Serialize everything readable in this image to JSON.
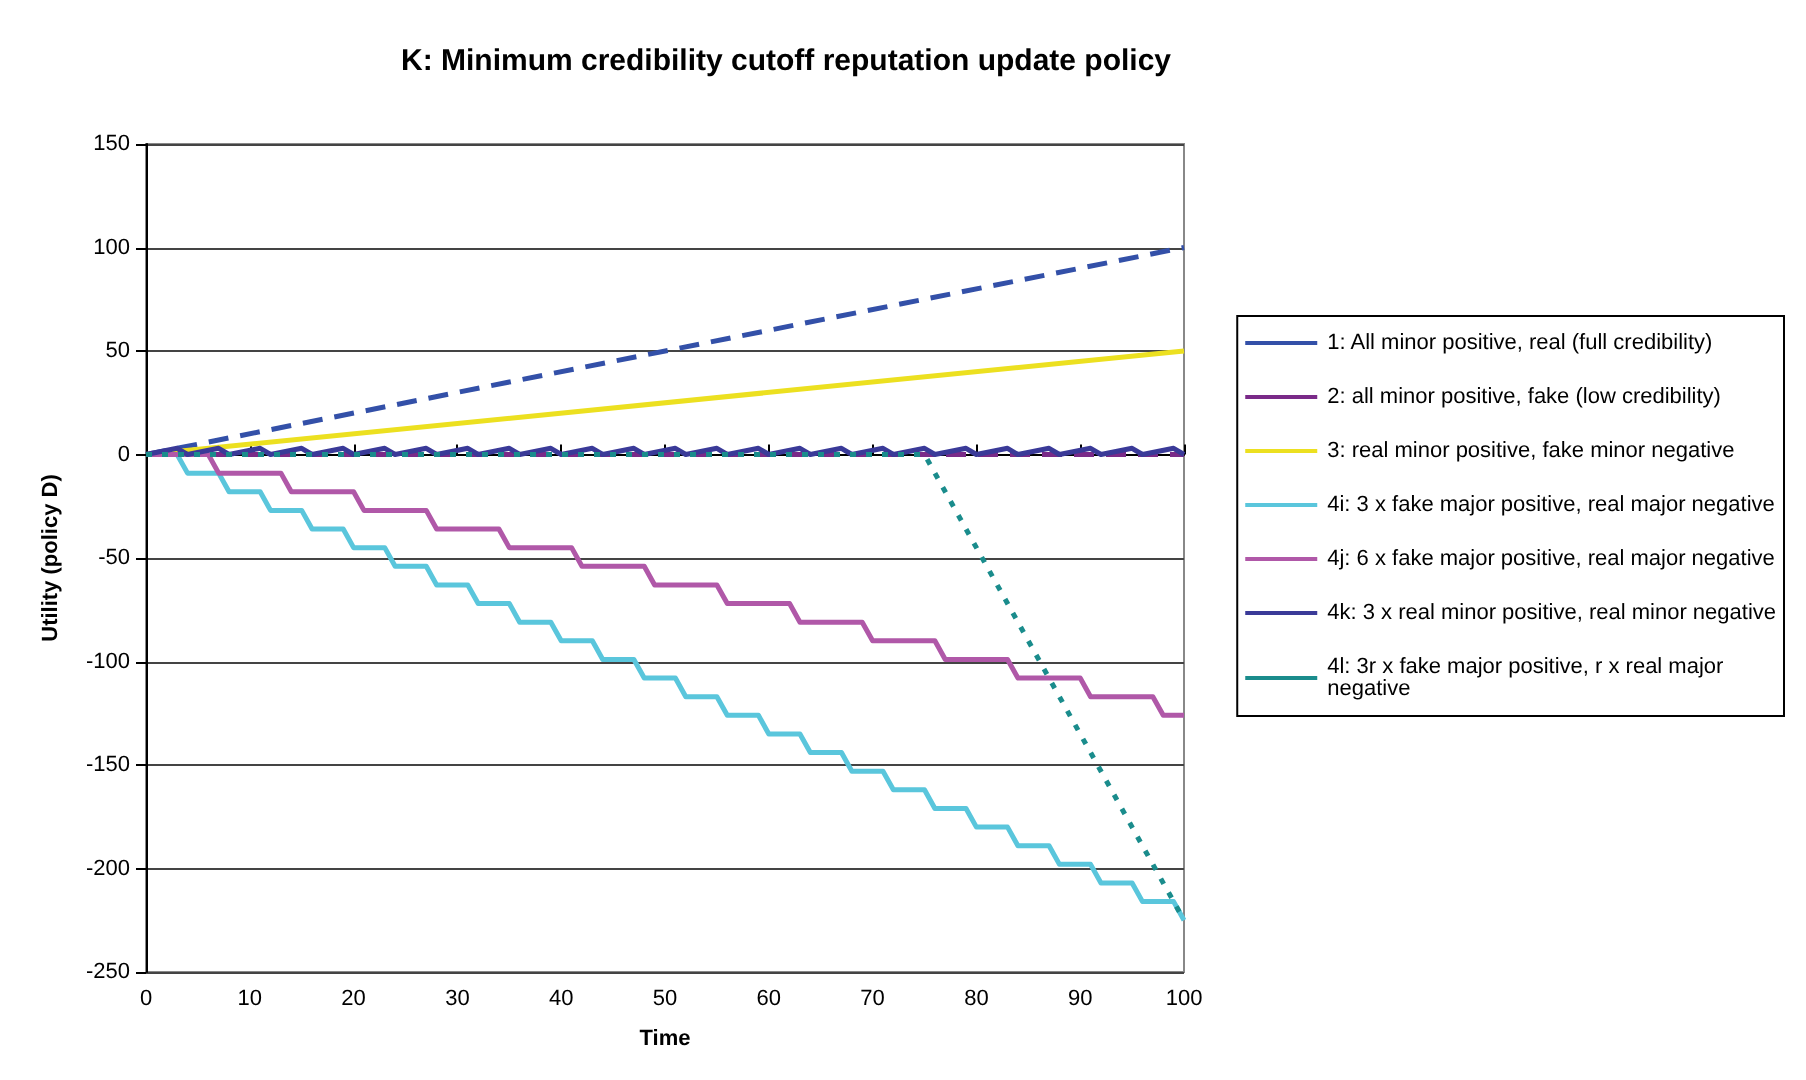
{
  "chart_data": {
    "type": "line",
    "title": "K: Minimum credibility cutoff reputation update policy",
    "xlabel": "Time",
    "ylabel": "Utility (policy D)",
    "xlim": [
      0,
      100
    ],
    "xticks": [
      0,
      10,
      20,
      30,
      40,
      50,
      60,
      70,
      80,
      90,
      100
    ],
    "ylim": [
      -250,
      150
    ],
    "yticks": [
      -250,
      -200,
      -150,
      -100,
      -50,
      0,
      50,
      100,
      150
    ],
    "grid": "y",
    "legend": "right",
    "marker": "none",
    "series": [
      {
        "name": "1: All minor positive, real (full credibility)",
        "color": "#3350a8",
        "line_style": "dashed",
        "x": [
          0,
          100
        ],
        "values": [
          0,
          100
        ]
      },
      {
        "name": "2: all minor positive, fake (low credibility)",
        "color": "#7a2a88",
        "line_style": "dashed",
        "x": [
          0,
          100
        ],
        "values": [
          0,
          0
        ]
      },
      {
        "name": "3: real minor positive, fake minor negative",
        "color": "#ece020",
        "line_style": "solid",
        "x": [
          0,
          100
        ],
        "values": [
          0,
          50
        ]
      },
      {
        "name": "4i: 3 x fake major positive, real major negative",
        "color": "#5ac6dc",
        "line_style": "solid",
        "x": [
          0,
          3,
          4,
          7,
          8,
          11,
          12,
          15,
          16,
          19,
          20,
          23,
          24,
          27,
          28,
          31,
          32,
          35,
          36,
          39,
          40,
          43,
          44,
          47,
          48,
          51,
          52,
          55,
          56,
          59,
          60,
          63,
          64,
          67,
          68,
          71,
          72,
          75,
          76,
          79,
          80,
          83,
          84,
          87,
          88,
          91,
          92,
          95,
          96,
          99,
          100
        ],
        "values": [
          0,
          0,
          -9,
          -9,
          -18,
          -18,
          -27,
          -27,
          -36,
          -36,
          -45,
          -45,
          -54,
          -54,
          -63,
          -63,
          -72,
          -72,
          -81,
          -81,
          -90,
          -90,
          -99,
          -99,
          -108,
          -108,
          -117,
          -117,
          -126,
          -126,
          -135,
          -135,
          -144,
          -144,
          -153,
          -153,
          -162,
          -162,
          -171,
          -171,
          -180,
          -180,
          -189,
          -189,
          -198,
          -198,
          -207,
          -207,
          -216,
          -216,
          -225
        ]
      },
      {
        "name": "4j: 6 x fake major positive, real major negative",
        "color": "#b058a8",
        "line_style": "solid",
        "x": [
          0,
          6,
          7,
          13,
          14,
          20,
          21,
          27,
          28,
          34,
          35,
          41,
          42,
          48,
          49,
          55,
          56,
          62,
          63,
          69,
          70,
          76,
          77,
          83,
          84,
          90,
          91,
          97,
          98,
          100
        ],
        "values": [
          0,
          0,
          -9,
          -9,
          -18,
          -18,
          -27,
          -27,
          -36,
          -36,
          -45,
          -45,
          -54,
          -54,
          -63,
          -63,
          -72,
          -72,
          -81,
          -81,
          -90,
          -90,
          -99,
          -99,
          -108,
          -108,
          -117,
          -117,
          -126,
          -126
        ]
      },
      {
        "name": "4k: 3 x real minor positive, real minor negative",
        "color": "#3a3a98",
        "line_style": "solid",
        "x": [
          0,
          3,
          4,
          7,
          8,
          11,
          12,
          15,
          16,
          19,
          20,
          23,
          24,
          27,
          28,
          31,
          32,
          35,
          36,
          39,
          40,
          43,
          44,
          47,
          48,
          51,
          52,
          55,
          56,
          59,
          60,
          63,
          64,
          67,
          68,
          71,
          72,
          75,
          76,
          79,
          80,
          83,
          84,
          87,
          88,
          91,
          92,
          95,
          96,
          99,
          100
        ],
        "values": [
          0,
          3,
          0,
          3,
          0,
          3,
          0,
          3,
          0,
          3,
          0,
          3,
          0,
          3,
          0,
          3,
          0,
          3,
          0,
          3,
          0,
          3,
          0,
          3,
          0,
          3,
          0,
          3,
          0,
          3,
          0,
          3,
          0,
          3,
          0,
          3,
          0,
          3,
          0,
          3,
          0,
          3,
          0,
          3,
          0,
          3,
          0,
          3,
          0,
          3,
          0
        ]
      },
      {
        "name": "4l: 3r x fake major positive, r x real major negative",
        "color": "#1a8c8c",
        "line_style": "dotted",
        "x": [
          0,
          75,
          100
        ],
        "values": [
          0,
          0,
          -225
        ]
      }
    ]
  }
}
